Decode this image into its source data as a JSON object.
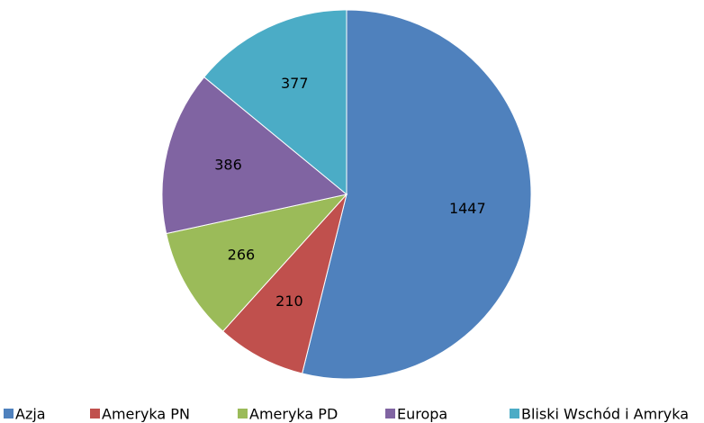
{
  "chart_data": {
    "type": "pie",
    "categories": [
      "Azja",
      "Ameryka PN",
      "Ameryka PD",
      "Europa",
      "Bliski Wschód i Amryka"
    ],
    "values": [
      1447,
      210,
      266,
      386,
      377
    ],
    "colors": [
      "#4f81bd",
      "#c0504d",
      "#9bbb59",
      "#8064a2",
      "#4bacc6"
    ],
    "legend": "bottom"
  }
}
